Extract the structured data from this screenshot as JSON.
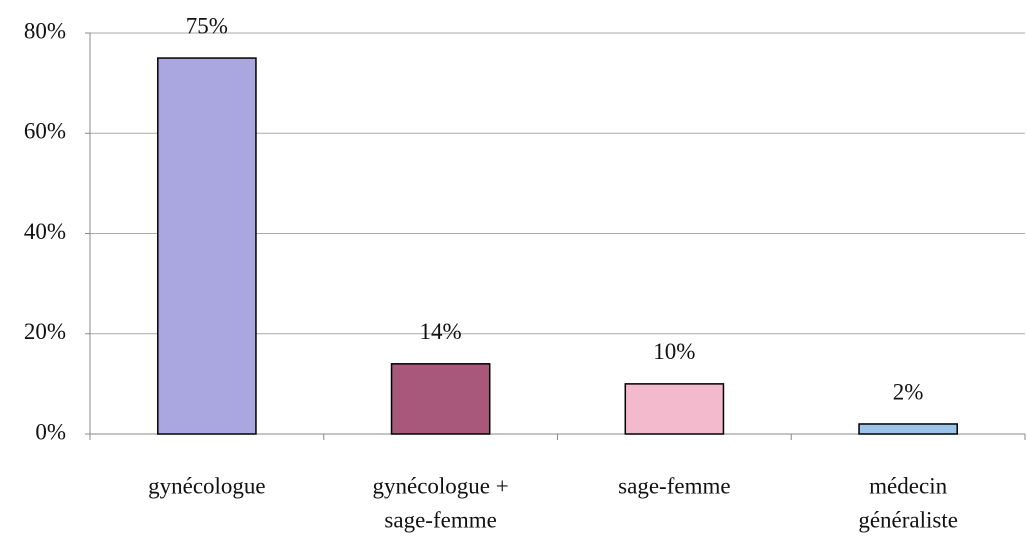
{
  "chart_data": {
    "type": "bar",
    "categories": [
      [
        "gynécologue"
      ],
      [
        "gynécologue +",
        "sage-femme"
      ],
      [
        "sage-femme"
      ],
      [
        "médecin",
        "généraliste"
      ]
    ],
    "values": [
      75,
      14,
      10,
      2
    ],
    "value_labels": [
      "75%",
      "14%",
      "10%",
      "2%"
    ],
    "colors": [
      "#aaa6e0",
      "#a8597b",
      "#f3b9cd",
      "#9cc3ea"
    ],
    "ylim": [
      0,
      80
    ],
    "yticks": [
      {
        "value": 0,
        "label": "0%"
      },
      {
        "value": 20,
        "label": "20%"
      },
      {
        "value": 40,
        "label": "40%"
      },
      {
        "value": 60,
        "label": "60%"
      },
      {
        "value": 80,
        "label": "80%"
      }
    ],
    "grid": true
  }
}
